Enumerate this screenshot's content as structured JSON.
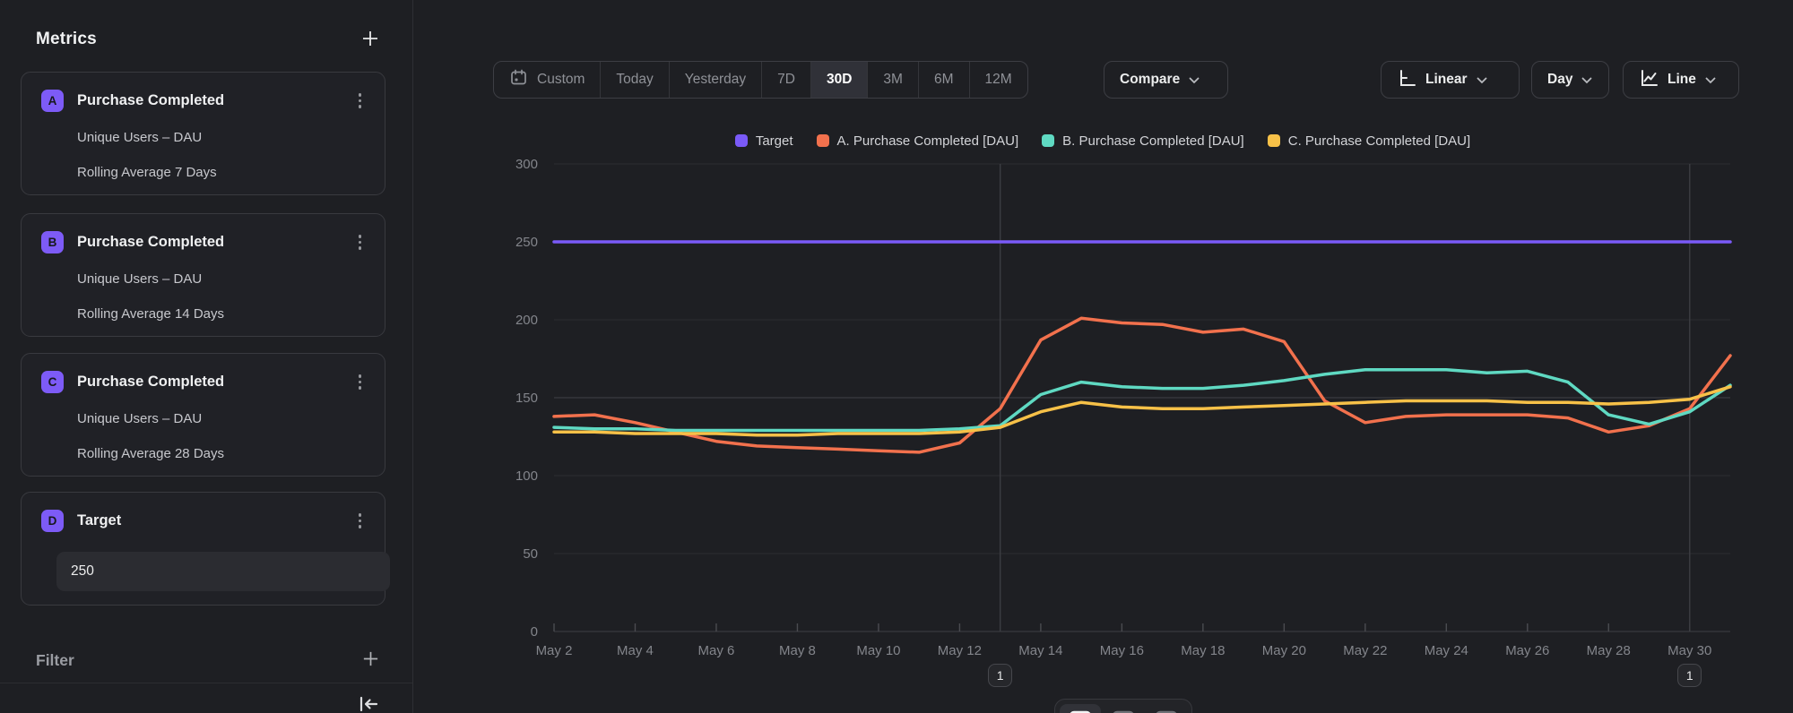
{
  "sidebar": {
    "title": "Metrics",
    "metrics": [
      {
        "badge": "A",
        "title": "Purchase Completed",
        "line1": "Unique Users – DAU",
        "line2": "Rolling Average 7 Days"
      },
      {
        "badge": "B",
        "title": "Purchase Completed",
        "line1": "Unique Users – DAU",
        "line2": "Rolling Average 14 Days"
      },
      {
        "badge": "C",
        "title": "Purchase Completed",
        "line1": "Unique Users – DAU",
        "line2": "Rolling Average 28 Days"
      }
    ],
    "target": {
      "badge": "D",
      "title": "Target",
      "value": "250"
    },
    "filter_label": "Filter"
  },
  "toolbar": {
    "ranges": [
      "Custom",
      "Today",
      "Yesterday",
      "7D",
      "30D",
      "3M",
      "6M",
      "12M"
    ],
    "selected_range": "30D",
    "compare_label": "Compare",
    "scale_label": "Linear",
    "granularity_label": "Day",
    "chart_type_label": "Line"
  },
  "icons": [
    "plus-icon",
    "kebab-icon",
    "calendar-icon",
    "chevron-down-icon",
    "axis-scale-icon",
    "line-chart-icon",
    "collapse-left-icon",
    "view-insights-icon",
    "view-table-icon",
    "view-board-icon"
  ],
  "colors": {
    "background": "#1e1f23",
    "target": "#7a5af8",
    "series_a": "#f2714d",
    "series_b": "#5fd9c2",
    "series_c": "#f7c148",
    "grid": "#2c2d32",
    "grid_bright": "#404147",
    "axis_line": "#3e3f45",
    "axis_text": "#83858b",
    "annotation_line": "#3c3d42"
  },
  "chart_data": {
    "type": "line",
    "title": "",
    "xlabel": "",
    "ylabel": "",
    "ylim": [
      0,
      300
    ],
    "yticks": [
      0,
      50,
      100,
      150,
      200,
      250,
      300
    ],
    "grid": "horizontal",
    "legend_position": "top",
    "x": [
      "May 2",
      "May 3",
      "May 4",
      "May 5",
      "May 6",
      "May 7",
      "May 8",
      "May 9",
      "May 10",
      "May 11",
      "May 12",
      "May 13",
      "May 14",
      "May 15",
      "May 16",
      "May 17",
      "May 18",
      "May 19",
      "May 20",
      "May 21",
      "May 22",
      "May 23",
      "May 24",
      "May 25",
      "May 26",
      "May 27",
      "May 28",
      "May 29",
      "May 30",
      "May 31"
    ],
    "xtick_labels": [
      "May 2",
      "May 4",
      "May 6",
      "May 8",
      "May 10",
      "May 12",
      "May 14",
      "May 16",
      "May 18",
      "May 20",
      "May 22",
      "May 24",
      "May 26",
      "May 28",
      "May 30"
    ],
    "series": [
      {
        "name": "Target",
        "color": "#7a5af8",
        "values": [
          250,
          250,
          250,
          250,
          250,
          250,
          250,
          250,
          250,
          250,
          250,
          250,
          250,
          250,
          250,
          250,
          250,
          250,
          250,
          250,
          250,
          250,
          250,
          250,
          250,
          250,
          250,
          250,
          250,
          250
        ]
      },
      {
        "name": "A. Purchase Completed [DAU]",
        "color": "#f2714d",
        "values": [
          138,
          139,
          134,
          128,
          122,
          119,
          118,
          117,
          116,
          115,
          121,
          143,
          187,
          201,
          198,
          197,
          192,
          194,
          186,
          148,
          134,
          138,
          139,
          139,
          139,
          137,
          128,
          132,
          143,
          177
        ]
      },
      {
        "name": "B. Purchase Completed [DAU]",
        "color": "#5fd9c2",
        "values": [
          131,
          130,
          130,
          129,
          129,
          129,
          129,
          129,
          129,
          129,
          130,
          132,
          152,
          160,
          157,
          156,
          156,
          158,
          161,
          165,
          168,
          168,
          168,
          166,
          167,
          160,
          139,
          133,
          141,
          158
        ]
      },
      {
        "name": "C. Purchase Completed [DAU]",
        "color": "#f7c148",
        "values": [
          128,
          128,
          127,
          127,
          127,
          126,
          126,
          127,
          127,
          127,
          128,
          131,
          141,
          147,
          144,
          143,
          143,
          144,
          145,
          146,
          147,
          148,
          148,
          148,
          147,
          147,
          146,
          147,
          149,
          157
        ]
      }
    ],
    "annotations": [
      {
        "label": "1",
        "x": "May 13"
      },
      {
        "label": "1",
        "x": "May 30"
      }
    ]
  }
}
